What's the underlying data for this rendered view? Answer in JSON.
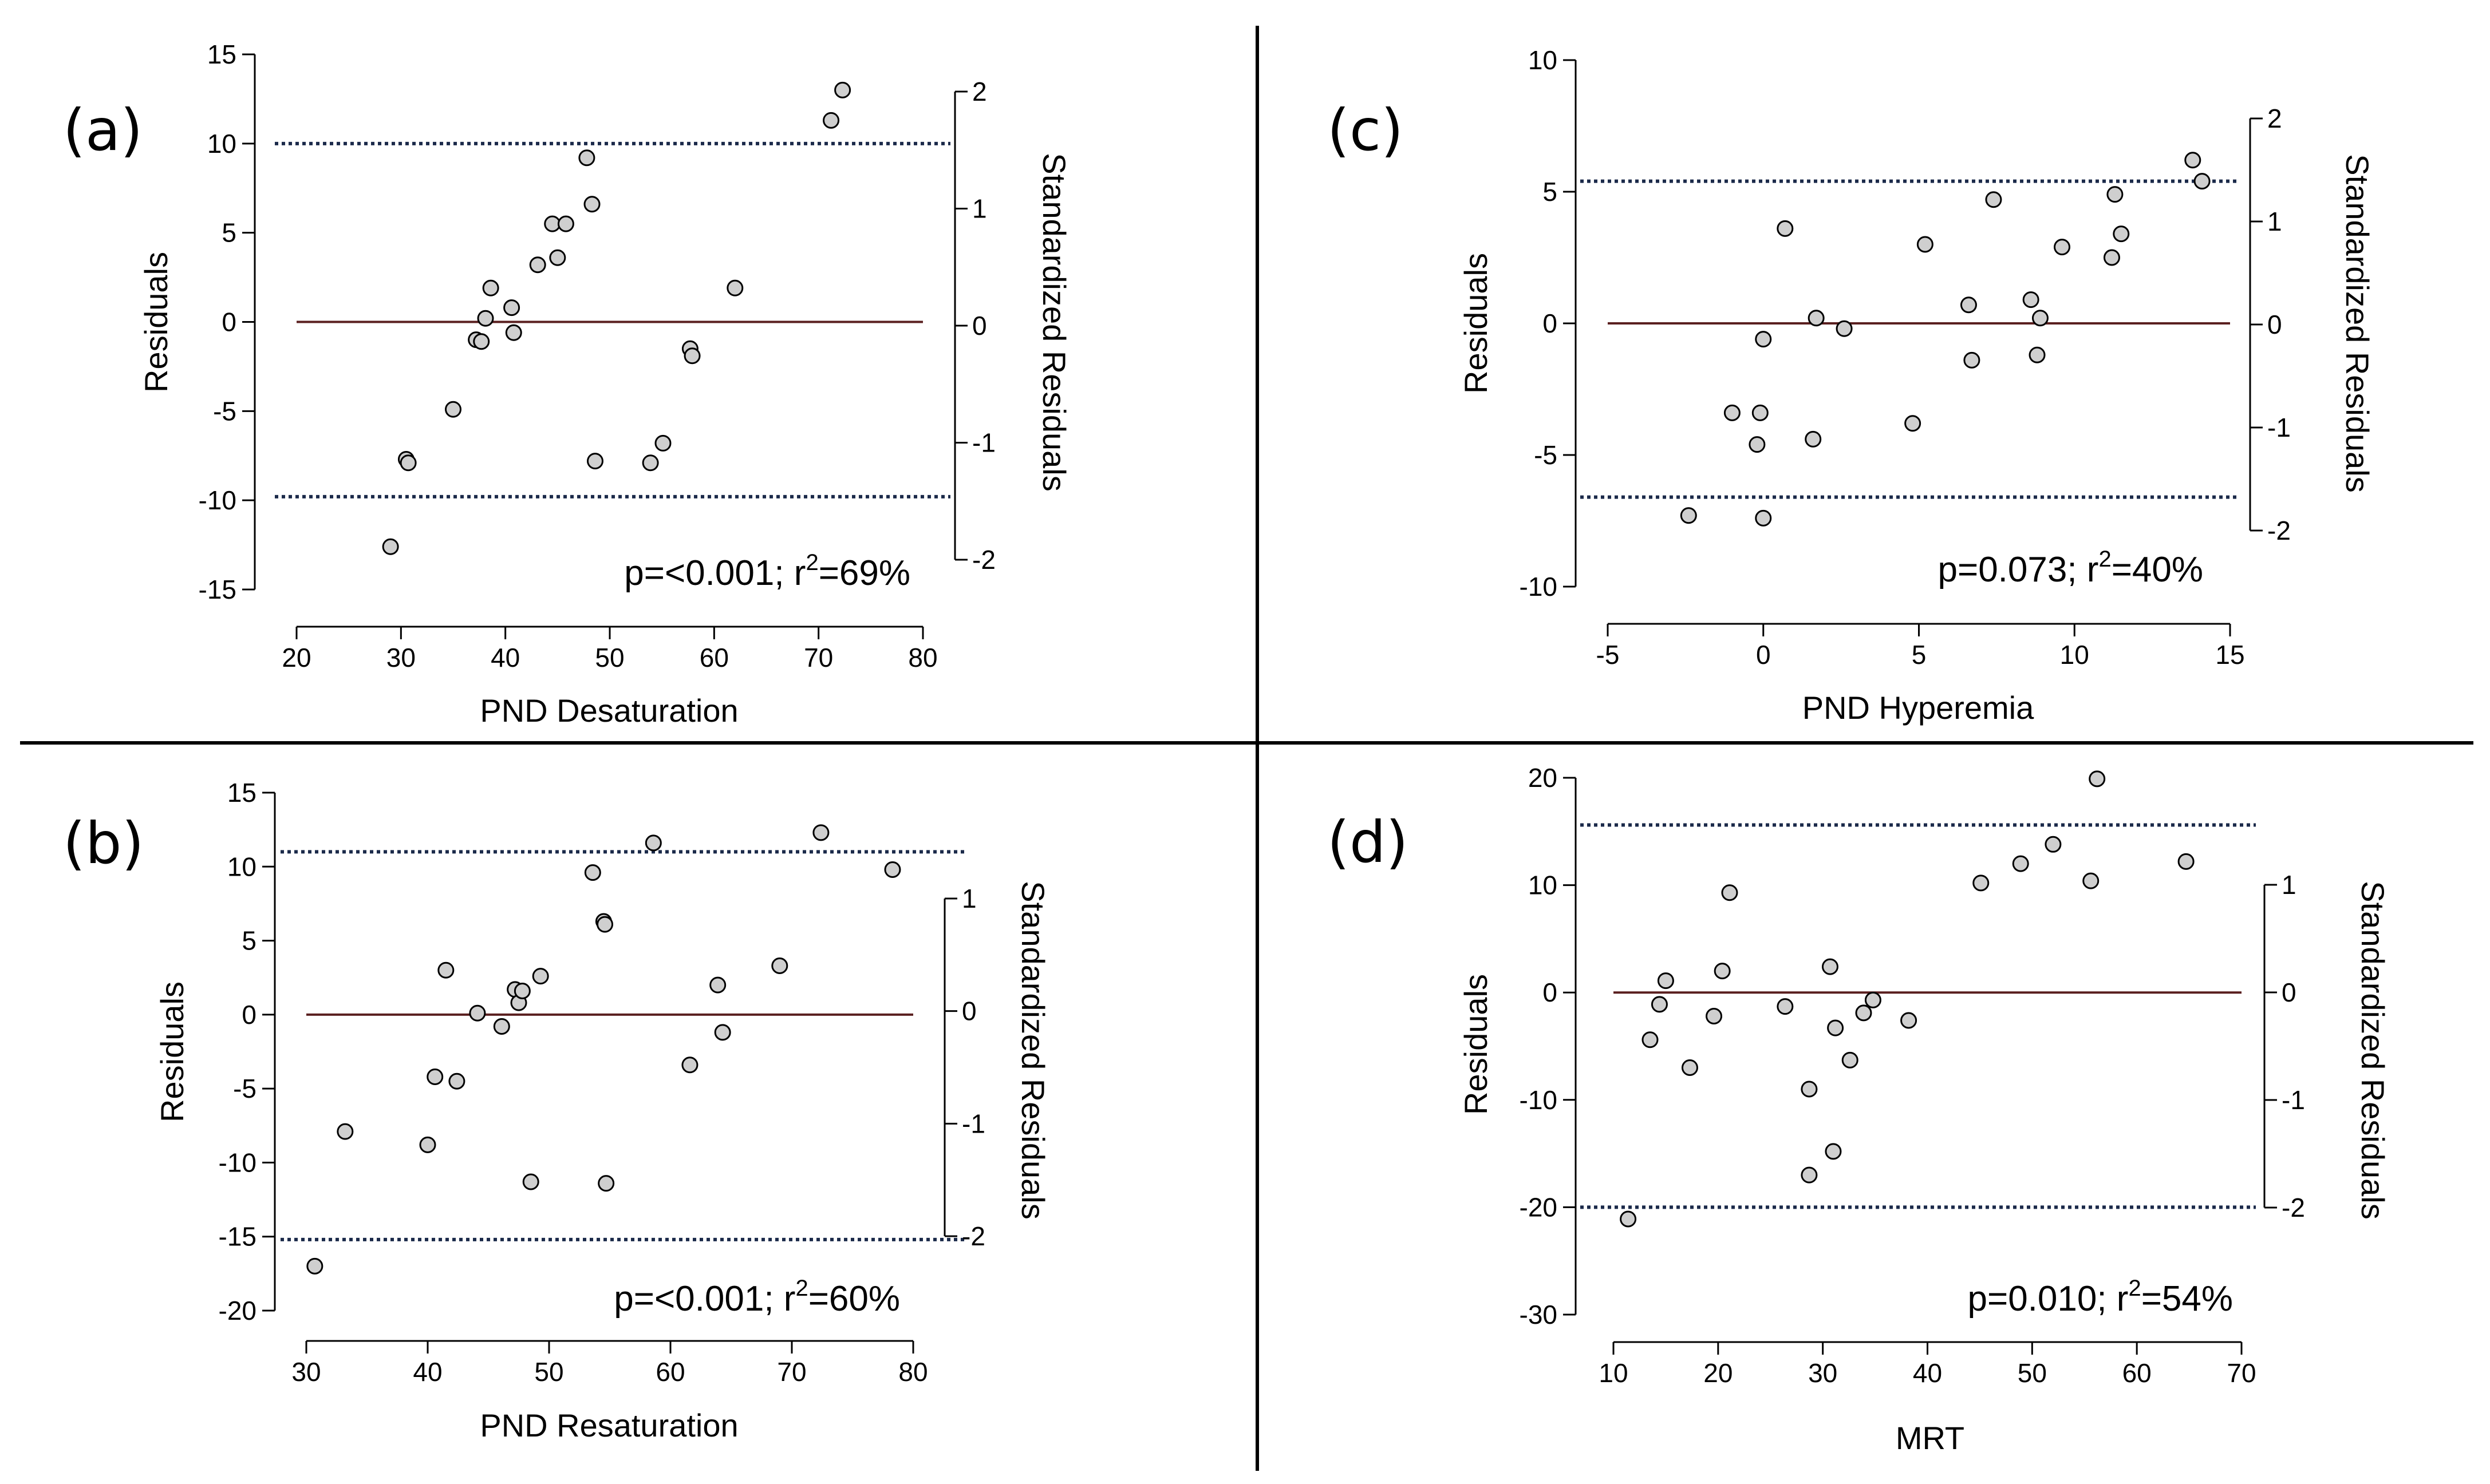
{
  "figure": {
    "colors": {
      "zero_line": "#5a1f1f",
      "dotted_line": "#1b2a4a",
      "point_fill": "#cfcfcf",
      "point_stroke": "#000000",
      "axis": "#000000"
    }
  },
  "chart_data": [
    {
      "id": "a",
      "type": "scatter",
      "panel_label": "(a)",
      "xlabel": "PND Desaturation",
      "ylabel": "Residuals",
      "y2label": "Standardized Residuals",
      "xlim": [
        20,
        80
      ],
      "ylim": [
        -15,
        15
      ],
      "y2lim": [
        -2,
        2
      ],
      "xticks": [
        20,
        30,
        40,
        50,
        60,
        70,
        80
      ],
      "yticks": [
        -15,
        -10,
        -5,
        0,
        5,
        10,
        15
      ],
      "y2ticks": [
        -2,
        -1,
        0,
        1,
        2
      ],
      "stat_p": "p=<0.001; r",
      "stat_sup": "2",
      "stat_r": "=69%",
      "zero_line": 0,
      "limits": [
        10,
        -9.8
      ],
      "points": [
        [
          29,
          -12.6
        ],
        [
          30.5,
          -7.7
        ],
        [
          30.7,
          -7.9
        ],
        [
          35,
          -4.9
        ],
        [
          37.2,
          -1.0
        ],
        [
          37.7,
          -1.1
        ],
        [
          38.1,
          0.2
        ],
        [
          38.6,
          1.9
        ],
        [
          40.6,
          0.8
        ],
        [
          40.8,
          -0.6
        ],
        [
          43.1,
          3.2
        ],
        [
          44.5,
          5.5
        ],
        [
          45,
          3.6
        ],
        [
          45.8,
          5.5
        ],
        [
          47.8,
          9.2
        ],
        [
          48.3,
          6.6
        ],
        [
          48.6,
          -7.8
        ],
        [
          53.9,
          -7.9
        ],
        [
          55.1,
          -6.8
        ],
        [
          57.7,
          -1.5
        ],
        [
          57.9,
          -1.9
        ],
        [
          62,
          1.9
        ],
        [
          71.2,
          11.3
        ],
        [
          72.3,
          13
        ]
      ]
    },
    {
      "id": "b",
      "type": "scatter",
      "panel_label": "(b)",
      "xlabel": "PND Resaturation",
      "ylabel": "Residuals",
      "y2label": "Standardized Residuals",
      "xlim": [
        30,
        80
      ],
      "ylim": [
        -20,
        15
      ],
      "y2lim": [
        -2,
        1
      ],
      "xticks": [
        30,
        40,
        50,
        60,
        70,
        80
      ],
      "yticks": [
        -20,
        -15,
        -10,
        -5,
        0,
        5,
        10,
        15
      ],
      "y2ticks": [
        -2,
        -1,
        0,
        1
      ],
      "stat_p": "p=<0.001; r",
      "stat_sup": "2",
      "stat_r": "=60%",
      "zero_line": 0,
      "limits": [
        11,
        -15.2
      ],
      "points": [
        [
          30.7,
          -17
        ],
        [
          33.2,
          -7.9
        ],
        [
          40,
          -8.8
        ],
        [
          40.6,
          -4.2
        ],
        [
          41.5,
          3
        ],
        [
          42.4,
          -4.5
        ],
        [
          44.1,
          0.1
        ],
        [
          46.1,
          -0.8
        ],
        [
          47.2,
          1.7
        ],
        [
          47.5,
          0.8
        ],
        [
          47.8,
          1.6
        ],
        [
          48.5,
          -11.3
        ],
        [
          49.3,
          2.6
        ],
        [
          53.6,
          9.6
        ],
        [
          54.5,
          6.3
        ],
        [
          54.6,
          6.1
        ],
        [
          54.7,
          -11.4
        ],
        [
          58.6,
          11.6
        ],
        [
          61.6,
          -3.4
        ],
        [
          63.9,
          2
        ],
        [
          64.3,
          -1.2
        ],
        [
          69,
          3.3
        ],
        [
          72.4,
          12.3
        ],
        [
          78.3,
          9.8
        ]
      ]
    },
    {
      "id": "c",
      "type": "scatter",
      "panel_label": "(c)",
      "xlabel": "PND Hyperemia",
      "ylabel": "Residuals",
      "y2label": "Standardized Residuals",
      "xlim": [
        -5,
        15
      ],
      "ylim": [
        -10,
        10
      ],
      "y2lim": [
        -2,
        2
      ],
      "xticks": [
        -5,
        0,
        5,
        10,
        15
      ],
      "yticks": [
        -10,
        -5,
        0,
        5,
        10
      ],
      "y2ticks": [
        -2,
        -1,
        0,
        1,
        2
      ],
      "stat_p": "p=0.073; r",
      "stat_sup": "2",
      "stat_r": "=40%",
      "zero_line": 0,
      "limits": [
        5.4,
        -6.6
      ],
      "points": [
        [
          -2.4,
          -7.3
        ],
        [
          -1,
          -3.4
        ],
        [
          -0.2,
          -4.6
        ],
        [
          -0.1,
          -3.4
        ],
        [
          0,
          -0.6
        ],
        [
          0,
          -7.4
        ],
        [
          0.7,
          3.6
        ],
        [
          1.6,
          -4.4
        ],
        [
          1.7,
          0.2
        ],
        [
          2.6,
          -0.2
        ],
        [
          4.8,
          -3.8
        ],
        [
          5.2,
          3
        ],
        [
          6.6,
          0.7
        ],
        [
          6.7,
          -1.4
        ],
        [
          7.4,
          4.7
        ],
        [
          8.6,
          0.9
        ],
        [
          8.8,
          -1.2
        ],
        [
          8.9,
          0.2
        ],
        [
          9.6,
          2.9
        ],
        [
          11.2,
          2.5
        ],
        [
          11.3,
          4.9
        ],
        [
          11.5,
          3.4
        ],
        [
          13.8,
          6.2
        ],
        [
          14.1,
          5.4
        ]
      ]
    },
    {
      "id": "d",
      "type": "scatter",
      "panel_label": "(d)",
      "xlabel": "MRT",
      "ylabel": "Residuals",
      "y2label": "Standardized Residuals",
      "xlim": [
        10,
        70
      ],
      "ylim": [
        -30,
        20
      ],
      "y2lim": [
        -2,
        1
      ],
      "xticks": [
        10,
        20,
        30,
        40,
        50,
        60,
        70
      ],
      "yticks": [
        -30,
        -20,
        -10,
        0,
        10,
        20
      ],
      "y2ticks": [
        -2,
        -1,
        0,
        1
      ],
      "stat_p": "p=0.010; r",
      "stat_sup": "2",
      "stat_r": "=54%",
      "zero_line": 0,
      "limits": [
        15.6,
        -20
      ],
      "points": [
        [
          11.4,
          -21.1
        ],
        [
          13.5,
          -4.4
        ],
        [
          14.4,
          -1.1
        ],
        [
          15,
          1.1
        ],
        [
          17.3,
          -7
        ],
        [
          19.6,
          -2.2
        ],
        [
          20.4,
          2
        ],
        [
          21.1,
          9.3
        ],
        [
          26.4,
          -1.3
        ],
        [
          28.7,
          -9
        ],
        [
          28.7,
          -17
        ],
        [
          30.7,
          2.4
        ],
        [
          31,
          -14.8
        ],
        [
          31.2,
          -3.3
        ],
        [
          32.6,
          -6.3
        ],
        [
          33.9,
          -1.9
        ],
        [
          34.8,
          -0.7
        ],
        [
          38.2,
          -2.6
        ],
        [
          45.1,
          10.2
        ],
        [
          48.9,
          12
        ],
        [
          52,
          13.8
        ],
        [
          55.6,
          10.4
        ],
        [
          56.2,
          19.9
        ],
        [
          64.7,
          12.2
        ]
      ]
    }
  ]
}
